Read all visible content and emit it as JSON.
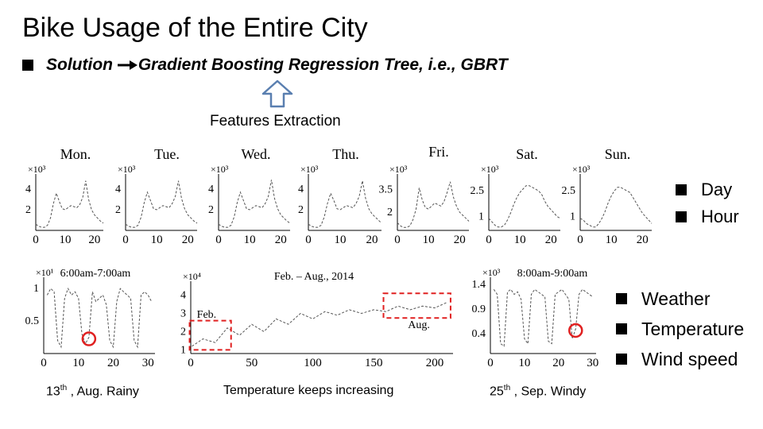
{
  "page": {
    "title": "Bike Usage of the Entire City",
    "solution_prefix": "Solution",
    "solution_text": "Gradient Boosting Regression Tree, i.e., GBRT",
    "features_label": "Features Extraction"
  },
  "bullets_top": [
    "Day",
    "Hour"
  ],
  "bullets_bottom": [
    "Weather",
    "Temperature",
    "Wind speed"
  ],
  "captions": {
    "rainy_sup": "th",
    "rainy_day": "13",
    "rainy_rest": " , Aug.  Rainy",
    "temp": "Temperature keeps increasing",
    "windy_day": "25",
    "windy_sup": "th",
    "windy_rest": " , Sep.  Windy"
  },
  "colors": {
    "highlight": "#e02020",
    "line": "#555555"
  },
  "chart_data": [
    {
      "type": "line",
      "title": "Mon.",
      "scale_label": "×10³",
      "x": [
        0,
        1,
        2,
        3,
        4,
        5,
        6,
        7,
        8,
        9,
        10,
        11,
        12,
        13,
        14,
        15,
        16,
        17,
        18,
        19,
        20,
        21,
        22,
        23
      ],
      "y": [
        0.6,
        0.4,
        0.3,
        0.3,
        0.5,
        1.2,
        2.6,
        3.6,
        2.8,
        2.1,
        2.0,
        2.2,
        2.4,
        2.3,
        2.2,
        2.5,
        3.2,
        4.8,
        3.0,
        2.0,
        1.5,
        1.2,
        0.9,
        0.7
      ],
      "yticks": [
        2,
        4
      ],
      "xticks": [
        0,
        10,
        20
      ],
      "ylim": [
        0,
        5
      ]
    },
    {
      "type": "line",
      "title": "Tue.",
      "scale_label": "×10³",
      "x": [
        0,
        1,
        2,
        3,
        4,
        5,
        6,
        7,
        8,
        9,
        10,
        11,
        12,
        13,
        14,
        15,
        16,
        17,
        18,
        19,
        20,
        21,
        22,
        23
      ],
      "y": [
        0.6,
        0.4,
        0.3,
        0.3,
        0.5,
        1.3,
        2.7,
        3.7,
        2.9,
        2.1,
        2.0,
        2.2,
        2.4,
        2.3,
        2.2,
        2.6,
        3.3,
        4.8,
        3.1,
        2.1,
        1.5,
        1.2,
        0.9,
        0.7
      ],
      "yticks": [
        2,
        4
      ],
      "xticks": [
        0,
        10,
        20
      ],
      "ylim": [
        0,
        5
      ]
    },
    {
      "type": "line",
      "title": "Wed.",
      "scale_label": "×10³",
      "x": [
        0,
        1,
        2,
        3,
        4,
        5,
        6,
        7,
        8,
        9,
        10,
        11,
        12,
        13,
        14,
        15,
        16,
        17,
        18,
        19,
        20,
        21,
        22,
        23
      ],
      "y": [
        0.6,
        0.4,
        0.3,
        0.3,
        0.5,
        1.3,
        2.7,
        3.7,
        2.9,
        2.1,
        2.0,
        2.2,
        2.4,
        2.3,
        2.2,
        2.6,
        3.3,
        4.9,
        3.1,
        2.1,
        1.5,
        1.2,
        0.9,
        0.7
      ],
      "yticks": [
        2,
        4
      ],
      "xticks": [
        0,
        10,
        20
      ],
      "ylim": [
        0,
        5
      ]
    },
    {
      "type": "line",
      "title": "Thu.",
      "scale_label": "×10³",
      "x": [
        0,
        1,
        2,
        3,
        4,
        5,
        6,
        7,
        8,
        9,
        10,
        11,
        12,
        13,
        14,
        15,
        16,
        17,
        18,
        19,
        20,
        21,
        22,
        23
      ],
      "y": [
        0.6,
        0.4,
        0.3,
        0.3,
        0.5,
        1.3,
        2.6,
        3.6,
        2.9,
        2.1,
        2.0,
        2.2,
        2.4,
        2.3,
        2.2,
        2.6,
        3.3,
        4.8,
        3.1,
        2.1,
        1.6,
        1.3,
        1.0,
        0.7
      ],
      "yticks": [
        2,
        4
      ],
      "xticks": [
        0,
        10,
        20
      ],
      "ylim": [
        0,
        5
      ]
    },
    {
      "type": "line",
      "title": "Fri.",
      "scale_label": "×10³",
      "x": [
        0,
        1,
        2,
        3,
        4,
        5,
        6,
        7,
        8,
        9,
        10,
        11,
        12,
        13,
        14,
        15,
        16,
        17,
        18,
        19,
        20,
        21,
        22,
        23
      ],
      "y": [
        1.3,
        1.1,
        1.0,
        1.0,
        1.1,
        1.5,
        2.2,
        3.6,
        2.8,
        2.3,
        2.2,
        2.4,
        2.6,
        2.5,
        2.4,
        2.7,
        3.3,
        4.0,
        3.0,
        2.4,
        2.0,
        1.8,
        1.6,
        1.4
      ],
      "yticks": [
        2,
        3.5
      ],
      "xticks": [
        0,
        10,
        20
      ],
      "ylim": [
        0.8,
        4.2
      ]
    },
    {
      "type": "line",
      "title": "Sat.",
      "scale_label": "×10³",
      "x": [
        0,
        1,
        2,
        3,
        4,
        5,
        6,
        7,
        8,
        9,
        10,
        11,
        12,
        13,
        14,
        15,
        16,
        17,
        18,
        19,
        20,
        21,
        22,
        23
      ],
      "y": [
        0.9,
        0.7,
        0.5,
        0.4,
        0.4,
        0.5,
        0.8,
        1.2,
        1.7,
        2.1,
        2.4,
        2.6,
        2.8,
        2.8,
        2.7,
        2.6,
        2.5,
        2.3,
        1.9,
        1.6,
        1.4,
        1.2,
        1.0,
        0.9
      ],
      "yticks": [
        1,
        2.5
      ],
      "xticks": [
        0,
        10,
        20
      ],
      "ylim": [
        0.2,
        3.2
      ]
    },
    {
      "type": "line",
      "title": "Sun.",
      "scale_label": "×10³",
      "x": [
        0,
        1,
        2,
        3,
        4,
        5,
        6,
        7,
        8,
        9,
        10,
        11,
        12,
        13,
        14,
        15,
        16,
        17,
        18,
        19,
        20,
        21,
        22,
        23
      ],
      "y": [
        0.9,
        0.8,
        0.6,
        0.5,
        0.4,
        0.4,
        0.6,
        0.9,
        1.3,
        1.8,
        2.2,
        2.5,
        2.7,
        2.7,
        2.6,
        2.5,
        2.4,
        2.1,
        1.8,
        1.5,
        1.2,
        1.0,
        0.8,
        0.6
      ],
      "yticks": [
        1,
        2.5
      ],
      "xticks": [
        0,
        10,
        20
      ],
      "ylim": [
        0.2,
        3.2
      ]
    },
    {
      "type": "line",
      "title": "6:00am-7:00am",
      "scale_label": "×10¹",
      "x": [
        1,
        2,
        3,
        4,
        5,
        6,
        7,
        8,
        9,
        10,
        11,
        12,
        13,
        14,
        15,
        16,
        17,
        18,
        19,
        20,
        21,
        22,
        23,
        24,
        25,
        26,
        27,
        28,
        29,
        30,
        31
      ],
      "y": [
        0.9,
        1.0,
        0.95,
        0.2,
        0.1,
        0.85,
        1.0,
        0.9,
        0.95,
        0.85,
        0.3,
        0.15,
        0.25,
        0.95,
        0.8,
        0.85,
        0.9,
        0.75,
        0.2,
        0.1,
        0.8,
        1.0,
        0.95,
        0.9,
        0.85,
        0.2,
        0.1,
        0.9,
        0.95,
        0.9,
        0.8
      ],
      "yticks": [
        0.5,
        1
      ],
      "xticks": [
        0,
        10,
        20,
        30
      ],
      "ylim": [
        0,
        1.1
      ],
      "xlim": [
        0,
        32
      ],
      "highlight_x": 13
    },
    {
      "type": "line",
      "title": "Feb. – Aug., 2014",
      "scale_label": "×10⁴",
      "x": [
        1,
        10,
        20,
        30,
        40,
        50,
        60,
        70,
        80,
        90,
        100,
        110,
        120,
        130,
        140,
        150,
        160,
        170,
        180,
        190,
        200,
        210
      ],
      "y": [
        1.2,
        1.6,
        1.4,
        2.2,
        1.8,
        2.4,
        2.0,
        2.7,
        2.4,
        3.0,
        2.7,
        3.1,
        2.9,
        3.2,
        3.0,
        3.2,
        3.1,
        3.4,
        3.2,
        3.4,
        3.3,
        3.6
      ],
      "yticks": [
        1,
        2,
        3,
        4
      ],
      "xticks": [
        0,
        50,
        100,
        150,
        200
      ],
      "ylim": [
        0.8,
        4.5
      ],
      "xlim": [
        0,
        215
      ],
      "annotations": [
        "Feb.",
        "Aug."
      ]
    },
    {
      "type": "line",
      "title": "8:00am-9:00am",
      "scale_label": "×10³",
      "x": [
        1,
        2,
        3,
        4,
        5,
        6,
        7,
        8,
        9,
        10,
        11,
        12,
        13,
        14,
        15,
        16,
        17,
        18,
        19,
        20,
        21,
        22,
        23,
        24,
        25,
        26,
        27,
        28,
        29,
        30
      ],
      "y": [
        1.3,
        1.2,
        0.2,
        0.15,
        1.25,
        1.3,
        1.2,
        1.25,
        1.1,
        0.3,
        0.2,
        1.2,
        1.3,
        1.25,
        1.2,
        1.15,
        0.25,
        0.2,
        1.2,
        1.25,
        1.3,
        1.2,
        1.1,
        0.3,
        0.5,
        1.2,
        1.3,
        1.25,
        1.2,
        1.15
      ],
      "yticks": [
        0.4,
        0.9,
        1.4
      ],
      "xticks": [
        0,
        10,
        20,
        30
      ],
      "ylim": [
        0,
        1.45
      ],
      "xlim": [
        0,
        31
      ],
      "highlight_x": 25
    }
  ]
}
